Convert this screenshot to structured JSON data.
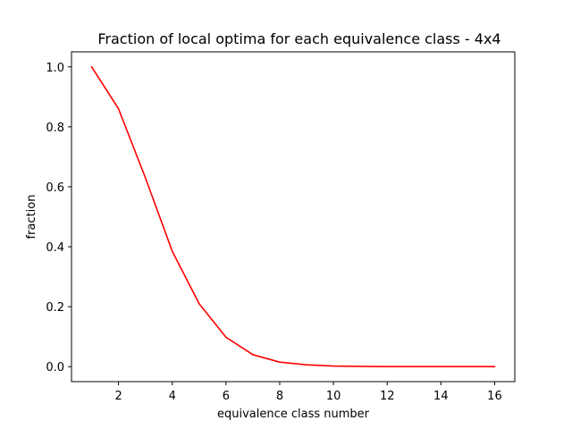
{
  "chart_data": {
    "type": "line",
    "title": "Fraction of local optima for each equivalence class - 4x4",
    "xlabel": "equivalence class number",
    "ylabel": "fraction",
    "xlim": [
      0.25,
      16.75
    ],
    "ylim": [
      -0.05,
      1.05
    ],
    "xticks": [
      2,
      4,
      6,
      8,
      10,
      12,
      14,
      16
    ],
    "xtick_labels": [
      "2",
      "4",
      "6",
      "8",
      "10",
      "12",
      "14",
      "16"
    ],
    "yticks": [
      0.0,
      0.2,
      0.4,
      0.6,
      0.8,
      1.0
    ],
    "ytick_labels": [
      "0.0",
      "0.2",
      "0.4",
      "0.6",
      "0.8",
      "1.0"
    ],
    "grid": false,
    "series": [
      {
        "color": "#ff0000",
        "x": [
          1,
          2,
          3,
          4,
          5,
          6,
          7,
          8,
          9,
          10,
          11,
          12,
          13,
          14,
          15,
          16
        ],
        "values": [
          1.0,
          0.86,
          0.63,
          0.385,
          0.21,
          0.098,
          0.04,
          0.015,
          0.006,
          0.002,
          0.001,
          0.0,
          0.0,
          0.0,
          0.0,
          0.0
        ]
      }
    ]
  }
}
